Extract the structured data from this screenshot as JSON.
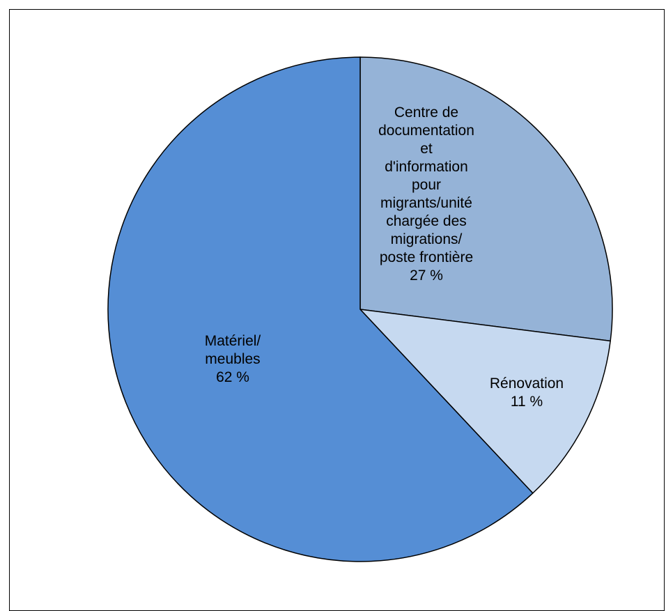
{
  "chart_data": {
    "type": "pie",
    "title": "",
    "legend": "none",
    "slices": [
      {
        "label_lines": [
          "Centre de",
          "documentation",
          "et",
          "d'information",
          "pour",
          "migrants/unité",
          "chargée des",
          "migrations/",
          "poste frontière"
        ],
        "percent_label": "27 %",
        "value": 27,
        "color": "#95B3D7"
      },
      {
        "label_lines": [
          "Rénovation"
        ],
        "percent_label": "11 %",
        "value": 11,
        "color": "#C6D9F0"
      },
      {
        "label_lines": [
          "Matériel/",
          "meubles"
        ],
        "percent_label": "62 %",
        "value": 62,
        "color": "#558ED5"
      }
    ]
  }
}
